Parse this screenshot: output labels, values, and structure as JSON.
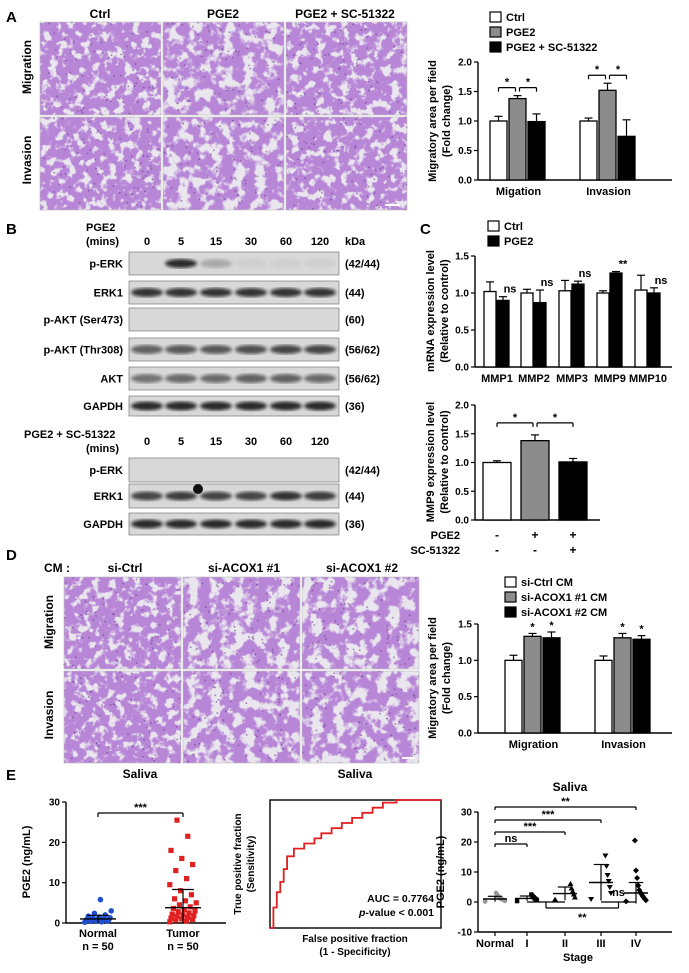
{
  "panels": {
    "A": "A",
    "B": "B",
    "C": "C",
    "D": "D",
    "E": "E"
  },
  "colors": {
    "ctrl": "#ffffff",
    "pge2": "#8c8c8c",
    "combo": "#000000",
    "stain": "#7b3fb0",
    "membrane": "#e9e6ee",
    "red": "#e02020",
    "blue": "#2050d0"
  },
  "panelA": {
    "cols": [
      "Ctrl",
      "PGE2",
      "PGE2 + SC-51322"
    ],
    "rows": [
      "Migration",
      "Invasion"
    ],
    "chart_data": {
      "type": "bar",
      "categories": [
        "Migation",
        "Invasion"
      ],
      "series": [
        {
          "name": "Ctrl",
          "values": [
            1.0,
            1.0
          ],
          "err": [
            0.08,
            0.05
          ]
        },
        {
          "name": "PGE2",
          "values": [
            1.38,
            1.52
          ],
          "err": [
            0.05,
            0.12
          ]
        },
        {
          "name": "PGE2 + SC-51322",
          "values": [
            0.99,
            0.74
          ],
          "err": [
            0.13,
            0.28
          ]
        }
      ],
      "ylabel": "Migratory area per field",
      "ylabel2": "(Fold change)",
      "ylim": [
        0,
        2.0
      ],
      "yticks": [
        "0.0",
        "0.5",
        "1.0",
        "1.5",
        "2.0"
      ],
      "legend": "top",
      "sig": [
        "*",
        "*",
        "*",
        "*"
      ]
    }
  },
  "panelB": {
    "top": {
      "treatment": "PGE2",
      "unit": "(mins)",
      "times": [
        "0",
        "5",
        "15",
        "30",
        "60",
        "120"
      ],
      "kda": "kDa",
      "rows": [
        {
          "label": "p-ERK",
          "size": "(42/44)"
        },
        {
          "label": "ERK1",
          "size": "(44)"
        },
        {
          "label": "p-AKT (Ser473)",
          "size": "(60)"
        },
        {
          "label": "p-AKT (Thr308)",
          "size": "(56/62)"
        },
        {
          "label": "AKT",
          "size": "(56/62)"
        },
        {
          "label": "GAPDH",
          "size": "(36)"
        }
      ]
    },
    "bottom": {
      "treatment": "PGE2 + SC-51322",
      "unit": "(mins)",
      "times": [
        "0",
        "5",
        "15",
        "30",
        "60",
        "120"
      ],
      "rows": [
        {
          "label": "p-ERK",
          "size": "(42/44)"
        },
        {
          "label": "ERK1",
          "size": "(44)"
        },
        {
          "label": "GAPDH",
          "size": "(36)"
        }
      ]
    }
  },
  "panelC": {
    "chart1": {
      "type": "bar",
      "categories": [
        "MMP1",
        "MMP2",
        "MMP3",
        "MMP9",
        "MMP10"
      ],
      "series": [
        {
          "name": "Ctrl",
          "values": [
            1.02,
            1.0,
            1.03,
            1.0,
            1.04
          ],
          "err": [
            0.13,
            0.05,
            0.14,
            0.03,
            0.2
          ]
        },
        {
          "name": "PGE2",
          "values": [
            0.9,
            0.87,
            1.12,
            1.27,
            1.0
          ],
          "err": [
            0.05,
            0.17,
            0.04,
            0.02,
            0.07
          ]
        }
      ],
      "ylabel": "mRNA expression level",
      "ylabel2": "(Relative to control)",
      "ylim": [
        0,
        1.5
      ],
      "yticks": [
        "0.0",
        "0.5",
        "1.0",
        "1.5"
      ],
      "sig": [
        "ns",
        "ns",
        "ns",
        "**",
        "ns"
      ],
      "legend": "top-left"
    },
    "chart2": {
      "type": "bar",
      "categories": [
        "1",
        "2",
        "3"
      ],
      "values": [
        1.0,
        1.38,
        1.01
      ],
      "err": [
        0.03,
        0.1,
        0.06
      ],
      "ylabel": "MMP9 expression level",
      "ylabel2": "(Relative to control)",
      "ylim": [
        0,
        2.0
      ],
      "yticks": [
        "0.0",
        "0.5",
        "1.0",
        "1.5",
        "2.0"
      ],
      "sig": [
        "*",
        "*"
      ],
      "row1_label": "PGE2",
      "row1": [
        "-",
        "+",
        "+"
      ],
      "row2_label": "SC-51322",
      "row2": [
        "-",
        "-",
        "+"
      ]
    }
  },
  "panelD": {
    "cm": "CM :",
    "cols": [
      "si-Ctrl",
      "si-ACOX1 #1",
      "si-ACOX1 #2"
    ],
    "rows": [
      "Migration",
      "Invasion"
    ],
    "chart_data": {
      "type": "bar",
      "categories": [
        "Migration",
        "Invasion"
      ],
      "series": [
        {
          "name": "si-Ctrl CM",
          "values": [
            1.0,
            1.0
          ],
          "err": [
            0.07,
            0.06
          ]
        },
        {
          "name": "si-ACOX1 #1 CM",
          "values": [
            1.33,
            1.31
          ],
          "err": [
            0.04,
            0.06
          ]
        },
        {
          "name": "si-ACOX1 #2 CM",
          "values": [
            1.31,
            1.29
          ],
          "err": [
            0.08,
            0.05
          ]
        }
      ],
      "ylabel": "Migratory area per field",
      "ylabel2": "(Fold change)",
      "ylim": [
        0,
        1.5
      ],
      "yticks": [
        "0.0",
        "0.5",
        "1.0",
        "1.5"
      ],
      "sig": [
        "*",
        "*",
        "*",
        "*"
      ],
      "legend": "top"
    }
  },
  "panelE": {
    "scatter1": {
      "type": "scatter",
      "title": "Saliva",
      "ylabel": "PGE2 (ng/mL)",
      "ylim": [
        0,
        30
      ],
      "yticks": [
        "0",
        "10",
        "20",
        "30"
      ],
      "groups": [
        {
          "name": "Normal",
          "n": "n = 50",
          "mean": 1.0,
          "sd": 0.9,
          "values": [
            0.2,
            0.3,
            0.4,
            0.5,
            0.5,
            0.6,
            0.6,
            0.7,
            0.8,
            0.9,
            1.0,
            1.1,
            1.2,
            1.3,
            1.5,
            1.7,
            2.0,
            2.4,
            3.0,
            5.8
          ]
        },
        {
          "name": "Tumor",
          "n": "n = 50",
          "mean": 3.8,
          "sd": 4.5,
          "values": [
            0.3,
            0.5,
            0.7,
            0.9,
            1.0,
            1.2,
            1.4,
            1.6,
            1.8,
            2.0,
            2.2,
            2.5,
            2.8,
            3.0,
            3.3,
            3.6,
            4.0,
            4.5,
            5.0,
            5.5,
            6.0,
            7.0,
            8.0,
            9.5,
            11.0,
            13.0,
            14.5,
            16.0,
            18.0,
            21.5,
            25.5
          ]
        }
      ],
      "sig": "***"
    },
    "roc": {
      "type": "line",
      "title": "Saliva",
      "ylabel": "True positive fraction",
      "ylabel2": "(Sensitivity)",
      "xlabel": "False positive fraction",
      "xlabel2": "(1 - Specificity)",
      "auc": "AUC = 0.7764",
      "pvalue_prefix": "p",
      "pvalue": "-value < 0.001",
      "x": [
        0,
        0.02,
        0.02,
        0.04,
        0.04,
        0.06,
        0.06,
        0.08,
        0.08,
        0.1,
        0.1,
        0.14,
        0.14,
        0.2,
        0.2,
        0.26,
        0.26,
        0.3,
        0.3,
        0.36,
        0.36,
        0.42,
        0.42,
        0.48,
        0.48,
        0.54,
        0.54,
        0.6,
        0.6,
        0.66,
        0.66,
        0.74,
        0.74,
        1.0
      ],
      "y": [
        0,
        0,
        0.16,
        0.16,
        0.28,
        0.28,
        0.36,
        0.36,
        0.46,
        0.46,
        0.56,
        0.56,
        0.62,
        0.62,
        0.66,
        0.66,
        0.7,
        0.7,
        0.74,
        0.74,
        0.78,
        0.78,
        0.82,
        0.82,
        0.86,
        0.86,
        0.9,
        0.9,
        0.94,
        0.94,
        0.98,
        0.98,
        1.0,
        1.0
      ]
    },
    "scatter2": {
      "type": "scatter",
      "title": "Saliva",
      "ylabel": "PGE2 (ng/mL)",
      "xlabel": "Stage",
      "ylim": [
        -10,
        30
      ],
      "yticks": [
        "-10",
        "0",
        "10",
        "20",
        "30"
      ],
      "groups": [
        {
          "name": "Normal",
          "mean": 1.0,
          "sd": 0.9,
          "values": [
            0.2,
            0.4,
            0.6,
            0.8,
            1.0,
            1.2,
            1.4,
            1.8,
            2.4,
            3.0
          ]
        },
        {
          "name": "I",
          "mean": 1.2,
          "sd": 0.8,
          "values": [
            0.3,
            0.6,
            0.9,
            1.2,
            1.6,
            2.0,
            2.5
          ]
        },
        {
          "name": "II",
          "mean": 2.8,
          "sd": 2.2,
          "values": [
            0.8,
            1.5,
            2.5,
            3.5,
            4.5,
            6.0
          ]
        },
        {
          "name": "III",
          "mean": 6.5,
          "sd": 6.0,
          "values": [
            1.0,
            3.0,
            5.0,
            7.0,
            9.0,
            12.0,
            15.5
          ]
        },
        {
          "name": "IV",
          "mean": 3.0,
          "sd": 3.5,
          "values": [
            0.2,
            0.6,
            1.0,
            1.5,
            2.0,
            2.6,
            3.2,
            4.0,
            5.5,
            8.0,
            10.5,
            20.5
          ]
        }
      ],
      "sig_top": [
        "**",
        "***",
        "***",
        "ns"
      ],
      "sig_bottom": [
        "**",
        "ns"
      ]
    }
  }
}
